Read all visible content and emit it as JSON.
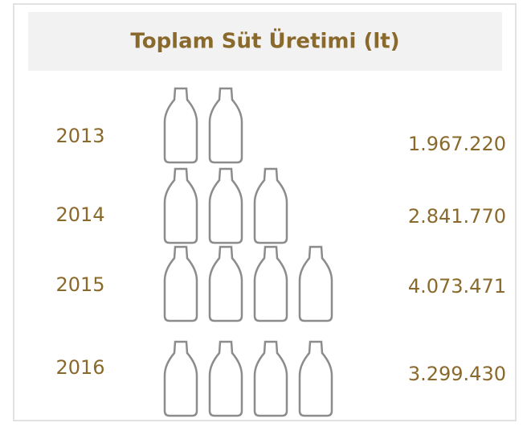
{
  "chart_data": {
    "type": "pictograph",
    "title": "Toplam Süt Üretimi (lt)",
    "categories": [
      "2013",
      "2014",
      "2015",
      "2016"
    ],
    "values": [
      1967220,
      2841770,
      4073471,
      3299430
    ],
    "value_labels": [
      "1.967.220",
      "2.841.770",
      "4.073.471",
      "3.299.430"
    ],
    "icon_counts": [
      2,
      3,
      4,
      4
    ],
    "color": "#8a6a2c",
    "icon_color": "#8c8c8c"
  }
}
